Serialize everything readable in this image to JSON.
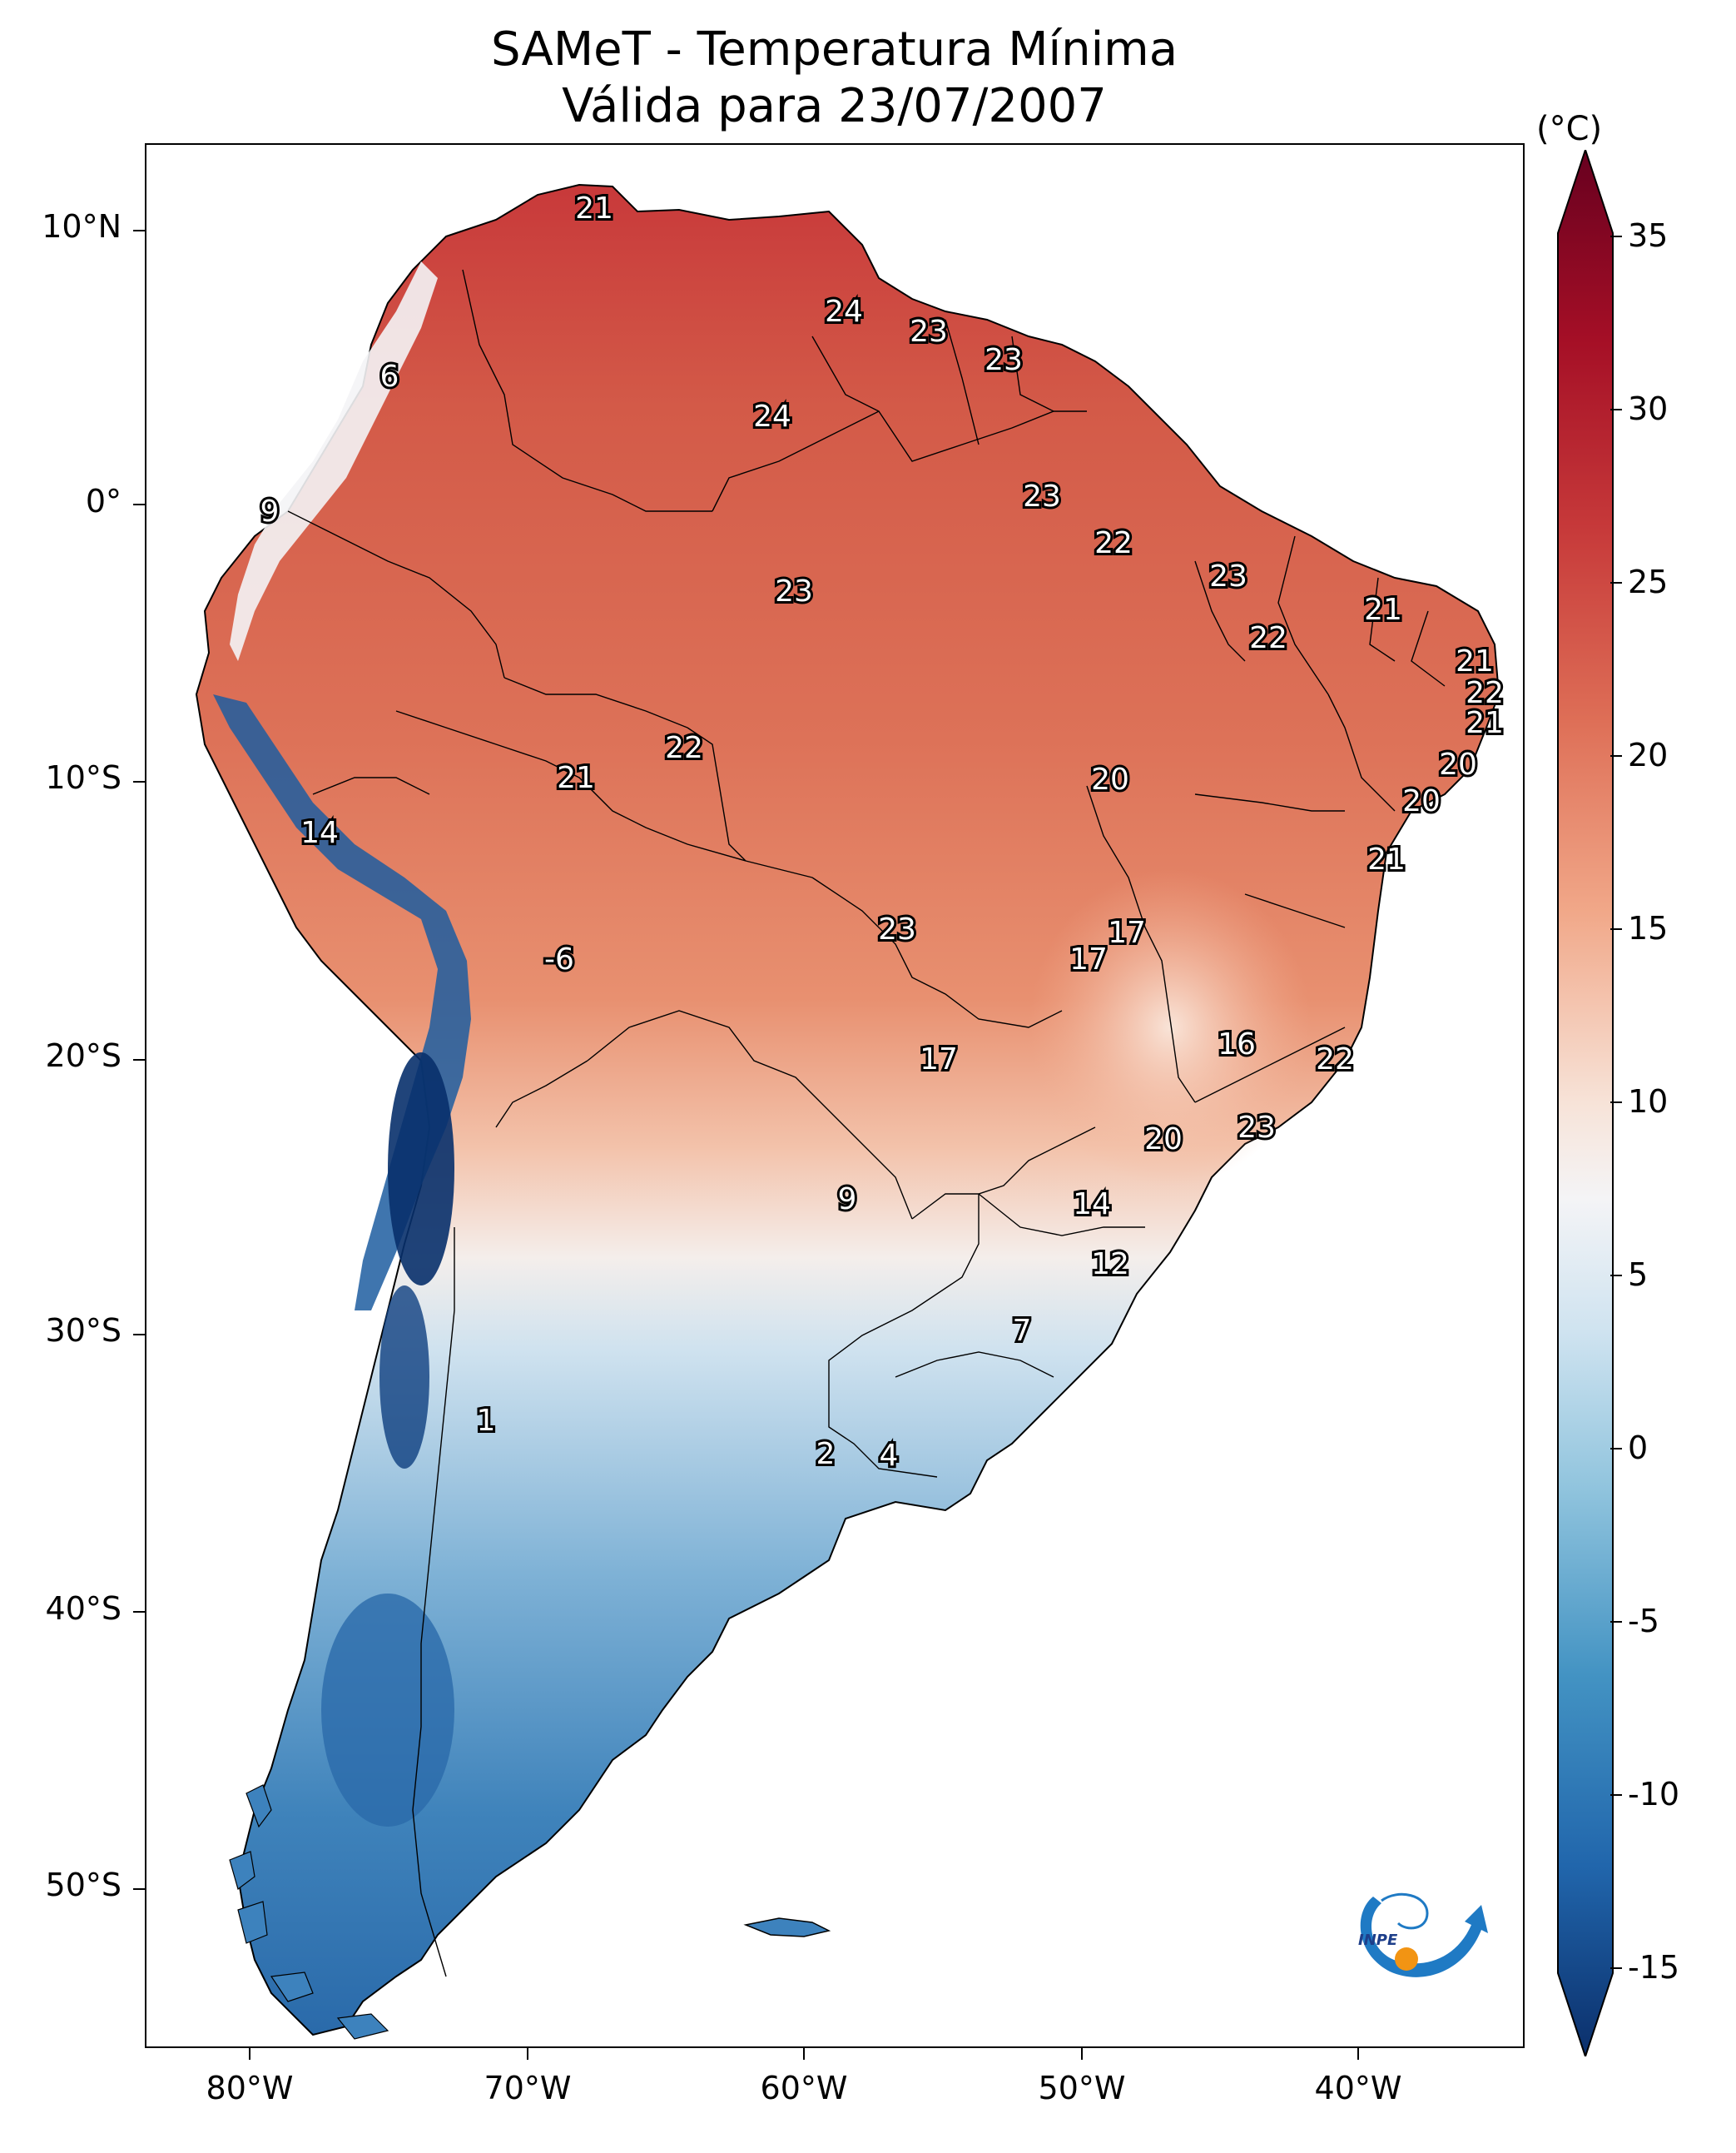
{
  "title": {
    "line1": "SAMeT - Temperatura Mínima",
    "line2": "Válida para 23/07/2007"
  },
  "latitude_labels": [
    "10°N",
    "0°",
    "10°S",
    "20°S",
    "30°S",
    "40°S",
    "50°S"
  ],
  "longitude_labels": [
    "80°W",
    "70°W",
    "60°W",
    "50°W",
    "40°W"
  ],
  "colorbar": {
    "unit": "(°C)",
    "tick_labels": [
      "35",
      "30",
      "25",
      "20",
      "15",
      "10",
      "5",
      "0",
      "-5",
      "-10",
      "-15"
    ],
    "range": [
      -17,
      38
    ],
    "colormap": "RdBu_r",
    "colors": [
      "#0b2f6b",
      "#2166ac",
      "#4393c3",
      "#92c5de",
      "#d1e5f0",
      "#f7f7f7",
      "#fddbc7",
      "#f4a582",
      "#d6604d",
      "#b2182b",
      "#67001f"
    ]
  },
  "logo": {
    "text": "INPE"
  },
  "station_labels": [
    "21",
    "24",
    "23",
    "23",
    "6",
    "24",
    "9",
    "23",
    "22",
    "23",
    "23",
    "21",
    "22",
    "21",
    "22",
    "21",
    "22",
    "21",
    "14",
    "20",
    "20",
    "20",
    "21",
    "17",
    "-6",
    "17",
    "23",
    "16",
    "22",
    "17",
    "20",
    "23",
    "9",
    "14",
    "12",
    "7",
    "1",
    "2",
    "4"
  ]
}
